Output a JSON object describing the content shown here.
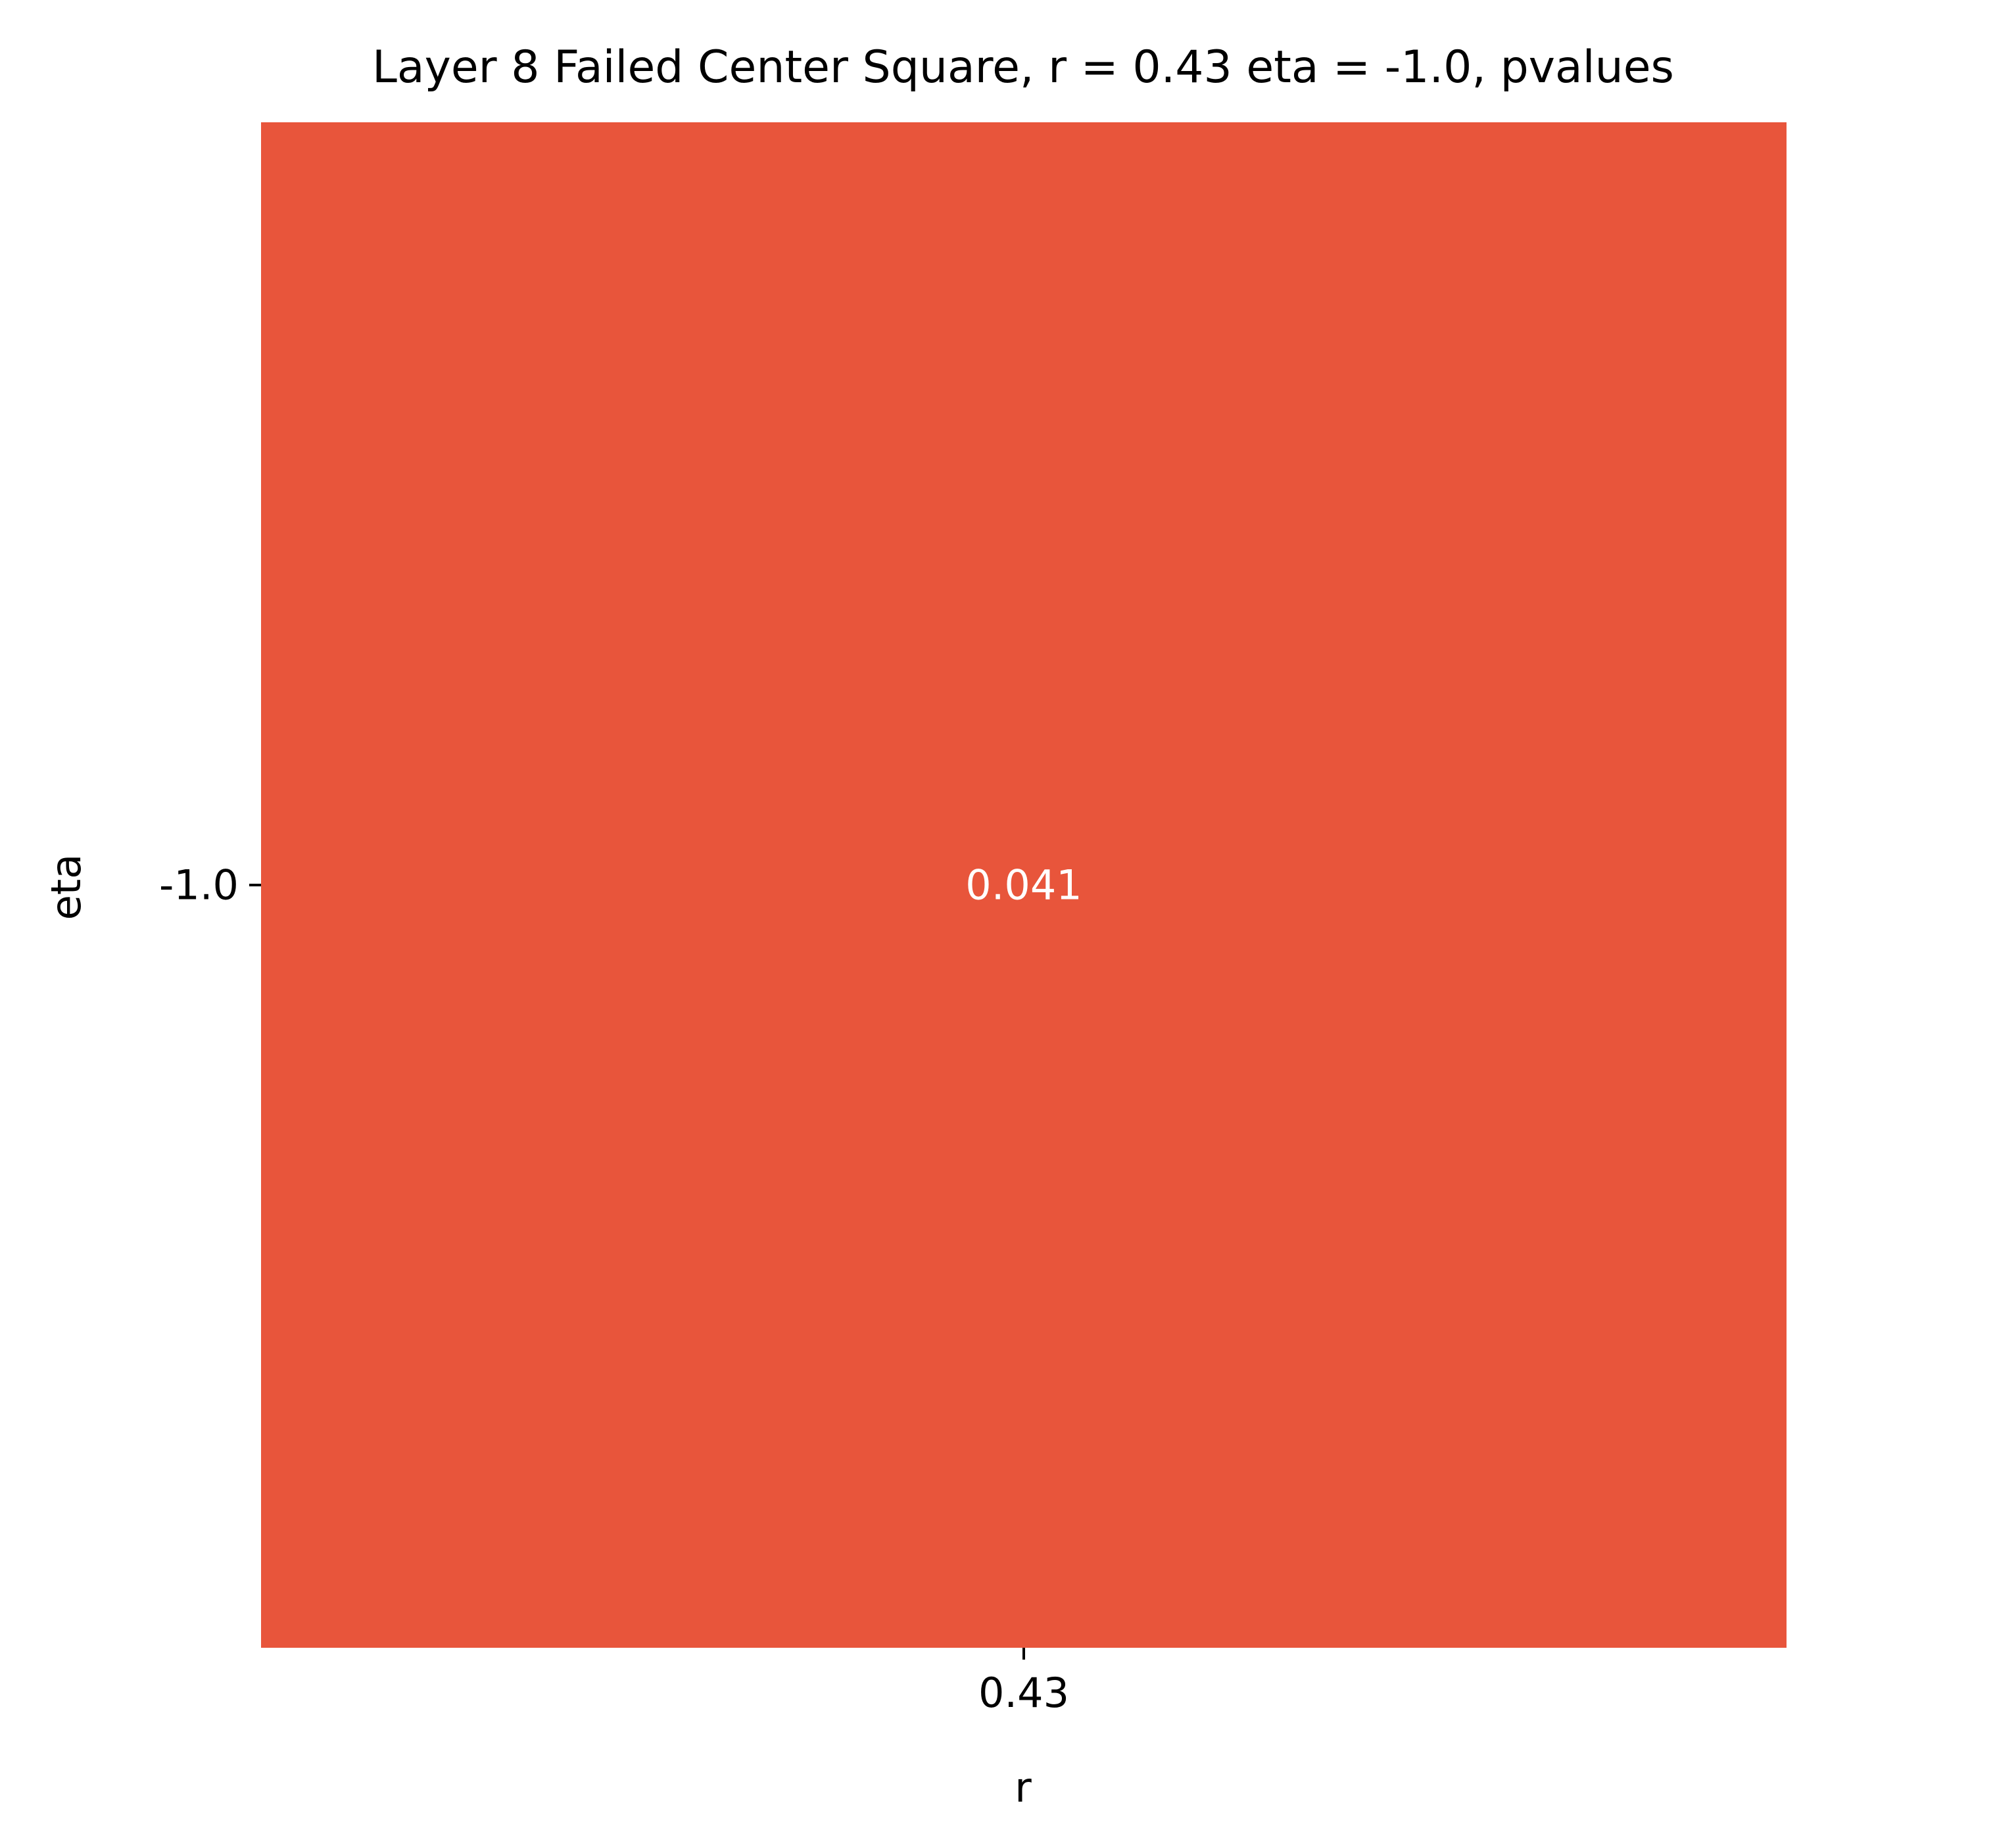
{
  "chart_data": {
    "type": "heatmap",
    "title": "Layer 8 Failed Center Square, r = 0.43 eta = -1.0, pvalues",
    "xlabel": "r",
    "ylabel": "eta",
    "x_categories": [
      "0.43"
    ],
    "y_categories": [
      "-1.0"
    ],
    "values": [
      [
        0.041
      ]
    ],
    "cell_labels": [
      [
        "0.041"
      ]
    ],
    "cell_color": "#e8553b",
    "annotation_color": "#ffffff",
    "text_color": "#000000",
    "legend": "none",
    "grid": false
  }
}
